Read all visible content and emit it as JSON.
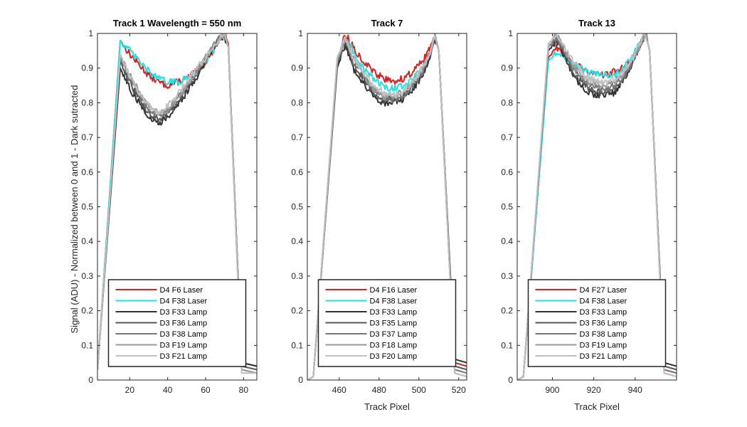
{
  "figure": {
    "ylabel": "Signal (ADU) - Normalized between 0 and 1 - Dark sutracted"
  },
  "chart_data": [
    {
      "type": "line",
      "title": "Track 1 Wavelength = 550 nm",
      "xlabel": "",
      "ylabel": "Signal (ADU) - Normalized between 0 and 1 - Dark sutracted",
      "xlim": [
        3,
        87
      ],
      "ylim": [
        0,
        1
      ],
      "xticks": [
        20,
        40,
        60,
        80
      ],
      "yticks": [
        0,
        0.1,
        0.2,
        0.3,
        0.4,
        0.5,
        0.6,
        0.7,
        0.8,
        0.9,
        1
      ],
      "grid": false,
      "legend_position": "bottom-center",
      "edges": {
        "start": 3,
        "rise_end": 15,
        "fall_start": 72,
        "end": 79,
        "right": 87
      },
      "series": [
        {
          "name": "D4 F6 Laser",
          "color": "#e41a1c",
          "width": 2,
          "x": [
            3,
            15,
            20,
            25,
            30,
            35,
            40,
            45,
            50,
            55,
            60,
            65,
            68,
            70,
            72,
            79,
            87
          ],
          "y": [
            0.03,
            0.98,
            0.94,
            0.91,
            0.88,
            0.86,
            0.85,
            0.86,
            0.87,
            0.89,
            0.92,
            0.96,
            0.99,
            1.0,
            0.97,
            0.05,
            0.04
          ]
        },
        {
          "name": "D4 F38 Laser",
          "color": "#19e5e6",
          "width": 2,
          "x": [
            3,
            15,
            20,
            25,
            30,
            35,
            40,
            45,
            50,
            55,
            60,
            65,
            68,
            70,
            72,
            79,
            87
          ],
          "y": [
            0.03,
            0.98,
            0.95,
            0.92,
            0.89,
            0.87,
            0.86,
            0.86,
            0.87,
            0.89,
            0.92,
            0.96,
            0.99,
            1.0,
            0.96,
            0.03,
            0.02
          ]
        },
        {
          "name": "D3 F33 Lamp",
          "color": "#333333",
          "width": 2,
          "x": [
            3,
            15,
            20,
            25,
            30,
            35,
            40,
            45,
            50,
            55,
            60,
            65,
            68,
            70,
            72,
            79,
            87
          ],
          "y": [
            0.03,
            0.9,
            0.84,
            0.8,
            0.76,
            0.74,
            0.76,
            0.79,
            0.83,
            0.87,
            0.92,
            0.97,
            0.99,
            0.99,
            0.96,
            0.05,
            0.04
          ]
        },
        {
          "name": "D3 F36 Lamp",
          "color": "#555555",
          "width": 2,
          "x": [
            3,
            15,
            20,
            25,
            30,
            35,
            40,
            45,
            50,
            55,
            60,
            65,
            68,
            70,
            72,
            79,
            87
          ],
          "y": [
            0.03,
            0.92,
            0.86,
            0.81,
            0.77,
            0.75,
            0.77,
            0.8,
            0.84,
            0.88,
            0.93,
            0.97,
            0.99,
            1.0,
            0.96,
            0.04,
            0.03
          ]
        },
        {
          "name": "D3 F38 Lamp",
          "color": "#777777",
          "width": 2,
          "x": [
            3,
            15,
            20,
            25,
            30,
            35,
            40,
            45,
            50,
            55,
            60,
            65,
            68,
            70,
            72,
            79,
            87
          ],
          "y": [
            0.03,
            0.93,
            0.87,
            0.82,
            0.78,
            0.76,
            0.78,
            0.81,
            0.85,
            0.89,
            0.93,
            0.97,
            0.99,
            1.0,
            0.96,
            0.03,
            0.02
          ]
        },
        {
          "name": "D3 F19 Lamp",
          "color": "#999999",
          "width": 2,
          "x": [
            3,
            15,
            20,
            25,
            30,
            35,
            40,
            45,
            50,
            55,
            60,
            65,
            68,
            70,
            72,
            79,
            87
          ],
          "y": [
            0.03,
            0.94,
            0.88,
            0.83,
            0.79,
            0.77,
            0.78,
            0.81,
            0.85,
            0.89,
            0.93,
            0.97,
            0.99,
            1.0,
            0.96,
            0.03,
            0.02
          ]
        },
        {
          "name": "D3 F21 Lamp",
          "color": "#c0c0c0",
          "width": 2,
          "x": [
            3,
            15,
            20,
            25,
            30,
            35,
            40,
            45,
            50,
            55,
            60,
            65,
            68,
            70,
            72,
            79,
            87
          ],
          "y": [
            0.03,
            0.94,
            0.88,
            0.83,
            0.79,
            0.77,
            0.79,
            0.82,
            0.86,
            0.9,
            0.93,
            0.97,
            0.99,
            1.0,
            0.96,
            0.02,
            0.02
          ]
        }
      ]
    },
    {
      "type": "line",
      "title": "Track 7",
      "xlabel": "Track Pixel",
      "ylabel": "",
      "xlim": [
        444,
        524
      ],
      "ylim": [
        0,
        1
      ],
      "xticks": [
        460,
        480,
        500,
        520
      ],
      "yticks": [
        0,
        0.1,
        0.2,
        0.3,
        0.4,
        0.5,
        0.6,
        0.7,
        0.8,
        0.9,
        1
      ],
      "grid": false,
      "legend_position": "bottom-center",
      "edges": {
        "start": 447,
        "rise_end": 459,
        "fall_start": 510,
        "end": 518,
        "right": 524
      },
      "series": [
        {
          "name": "D4 F16 Laser",
          "color": "#e41a1c",
          "width": 2,
          "x": [
            444,
            447,
            459,
            463,
            467,
            472,
            477,
            482,
            487,
            492,
            497,
            502,
            506,
            508,
            510,
            518,
            524
          ],
          "y": [
            0.0,
            0.01,
            0.92,
            1.0,
            0.96,
            0.92,
            0.89,
            0.87,
            0.86,
            0.87,
            0.89,
            0.92,
            0.96,
            1.0,
            0.95,
            0.05,
            0.04
          ]
        },
        {
          "name": "D4 F38 Laser",
          "color": "#19e5e6",
          "width": 2,
          "x": [
            444,
            447,
            459,
            463,
            467,
            472,
            477,
            482,
            487,
            492,
            497,
            502,
            506,
            508,
            510,
            518,
            524
          ],
          "y": [
            0.0,
            0.01,
            0.93,
            0.99,
            0.95,
            0.9,
            0.87,
            0.85,
            0.84,
            0.85,
            0.87,
            0.9,
            0.95,
            0.99,
            0.95,
            0.02,
            0.01
          ]
        },
        {
          "name": "D3 F33 Lamp",
          "color": "#333333",
          "width": 2,
          "x": [
            444,
            447,
            459,
            463,
            467,
            472,
            477,
            482,
            487,
            492,
            497,
            502,
            506,
            508,
            510,
            518,
            524
          ],
          "y": [
            0.0,
            0.01,
            0.9,
            0.97,
            0.9,
            0.86,
            0.82,
            0.8,
            0.8,
            0.81,
            0.84,
            0.88,
            0.94,
            0.99,
            0.95,
            0.06,
            0.05
          ]
        },
        {
          "name": "D3 F35 Lamp",
          "color": "#555555",
          "width": 2,
          "x": [
            444,
            447,
            459,
            463,
            467,
            472,
            477,
            482,
            487,
            492,
            497,
            502,
            506,
            508,
            510,
            518,
            524
          ],
          "y": [
            0.0,
            0.01,
            0.91,
            0.98,
            0.91,
            0.87,
            0.83,
            0.81,
            0.81,
            0.82,
            0.85,
            0.89,
            0.95,
            0.99,
            0.95,
            0.04,
            0.03
          ]
        },
        {
          "name": "D3 F37 Lamp",
          "color": "#777777",
          "width": 2,
          "x": [
            444,
            447,
            459,
            463,
            467,
            472,
            477,
            482,
            487,
            492,
            497,
            502,
            506,
            508,
            510,
            518,
            524
          ],
          "y": [
            0.0,
            0.01,
            0.92,
            0.99,
            0.92,
            0.88,
            0.84,
            0.82,
            0.81,
            0.82,
            0.85,
            0.89,
            0.95,
            0.99,
            0.95,
            0.03,
            0.02
          ]
        },
        {
          "name": "D3 F18 Lamp",
          "color": "#999999",
          "width": 2,
          "x": [
            444,
            447,
            459,
            463,
            467,
            472,
            477,
            482,
            487,
            492,
            497,
            502,
            506,
            508,
            510,
            518,
            524
          ],
          "y": [
            0.0,
            0.01,
            0.92,
            0.99,
            0.93,
            0.88,
            0.84,
            0.82,
            0.82,
            0.83,
            0.86,
            0.9,
            0.95,
            0.99,
            0.95,
            0.02,
            0.01
          ]
        },
        {
          "name": "D3 F20 Lamp",
          "color": "#c0c0c0",
          "width": 2,
          "x": [
            444,
            447,
            459,
            463,
            467,
            472,
            477,
            482,
            487,
            492,
            497,
            502,
            506,
            508,
            510,
            518,
            524
          ],
          "y": [
            0.0,
            0.01,
            0.93,
            0.99,
            0.93,
            0.89,
            0.85,
            0.83,
            0.82,
            0.83,
            0.86,
            0.9,
            0.95,
            0.99,
            0.95,
            0.02,
            0.01
          ]
        }
      ]
    },
    {
      "type": "line",
      "title": "Track 13",
      "xlabel": "Track Pixel",
      "ylabel": "",
      "xlim": [
        883,
        960
      ],
      "ylim": [
        0,
        1
      ],
      "xticks": [
        900,
        920,
        940
      ],
      "yticks": [
        0,
        0.1,
        0.2,
        0.3,
        0.4,
        0.5,
        0.6,
        0.7,
        0.8,
        0.9,
        1
      ],
      "grid": false,
      "legend_position": "bottom-center",
      "edges": {
        "start": 886,
        "rise_end": 898,
        "fall_start": 947,
        "end": 954,
        "right": 960
      },
      "series": [
        {
          "name": "D4 F27 Laser",
          "color": "#e41a1c",
          "width": 2,
          "x": [
            883,
            886,
            898,
            902,
            906,
            910,
            914,
            918,
            922,
            926,
            930,
            934,
            938,
            942,
            945,
            947,
            954,
            960
          ],
          "y": [
            0.0,
            0.01,
            0.93,
            0.96,
            0.93,
            0.91,
            0.9,
            0.89,
            0.88,
            0.88,
            0.89,
            0.9,
            0.92,
            0.97,
            1.0,
            0.95,
            0.03,
            0.02
          ]
        },
        {
          "name": "D4 F38 Laser",
          "color": "#19e5e6",
          "width": 2,
          "x": [
            883,
            886,
            898,
            902,
            906,
            910,
            914,
            918,
            922,
            926,
            930,
            934,
            938,
            942,
            945,
            947,
            954,
            960
          ],
          "y": [
            0.0,
            0.01,
            0.92,
            0.95,
            0.93,
            0.91,
            0.9,
            0.89,
            0.88,
            0.88,
            0.88,
            0.9,
            0.93,
            0.97,
            1.0,
            0.95,
            0.02,
            0.01
          ]
        },
        {
          "name": "D3 F33 Lamp",
          "color": "#333333",
          "width": 2,
          "x": [
            883,
            886,
            898,
            902,
            906,
            910,
            914,
            918,
            922,
            926,
            930,
            934,
            938,
            942,
            945,
            947,
            954,
            960
          ],
          "y": [
            0.0,
            0.01,
            0.95,
            0.98,
            0.93,
            0.88,
            0.85,
            0.83,
            0.82,
            0.82,
            0.83,
            0.86,
            0.9,
            0.96,
            1.0,
            0.95,
            0.05,
            0.04
          ]
        },
        {
          "name": "D3 F36 Lamp",
          "color": "#555555",
          "width": 2,
          "x": [
            883,
            886,
            898,
            902,
            906,
            910,
            914,
            918,
            922,
            926,
            930,
            934,
            938,
            942,
            945,
            947,
            954,
            960
          ],
          "y": [
            0.0,
            0.01,
            0.96,
            0.99,
            0.94,
            0.89,
            0.86,
            0.84,
            0.83,
            0.83,
            0.84,
            0.87,
            0.91,
            0.96,
            1.0,
            0.95,
            0.04,
            0.03
          ]
        },
        {
          "name": "D3 F38 Lamp",
          "color": "#777777",
          "width": 2,
          "x": [
            883,
            886,
            898,
            902,
            906,
            910,
            914,
            918,
            922,
            926,
            930,
            934,
            938,
            942,
            945,
            947,
            954,
            960
          ],
          "y": [
            0.0,
            0.01,
            0.96,
            0.99,
            0.95,
            0.9,
            0.87,
            0.85,
            0.84,
            0.84,
            0.85,
            0.87,
            0.91,
            0.96,
            1.0,
            0.95,
            0.03,
            0.02
          ]
        },
        {
          "name": "D3 F19 Lamp",
          "color": "#999999",
          "width": 2,
          "x": [
            883,
            886,
            898,
            902,
            906,
            910,
            914,
            918,
            922,
            926,
            930,
            934,
            938,
            942,
            945,
            947,
            954,
            960
          ],
          "y": [
            0.0,
            0.01,
            0.96,
            1.0,
            0.95,
            0.91,
            0.88,
            0.86,
            0.85,
            0.85,
            0.86,
            0.88,
            0.92,
            0.96,
            1.0,
            0.95,
            0.02,
            0.01
          ]
        },
        {
          "name": "D3 F21 Lamp",
          "color": "#c0c0c0",
          "width": 2,
          "x": [
            883,
            886,
            898,
            902,
            906,
            910,
            914,
            918,
            922,
            926,
            930,
            934,
            938,
            942,
            945,
            947,
            954,
            960
          ],
          "y": [
            0.0,
            0.01,
            0.97,
            1.0,
            0.96,
            0.92,
            0.89,
            0.87,
            0.86,
            0.86,
            0.87,
            0.89,
            0.92,
            0.97,
            1.0,
            0.95,
            0.02,
            0.01
          ]
        }
      ]
    }
  ]
}
